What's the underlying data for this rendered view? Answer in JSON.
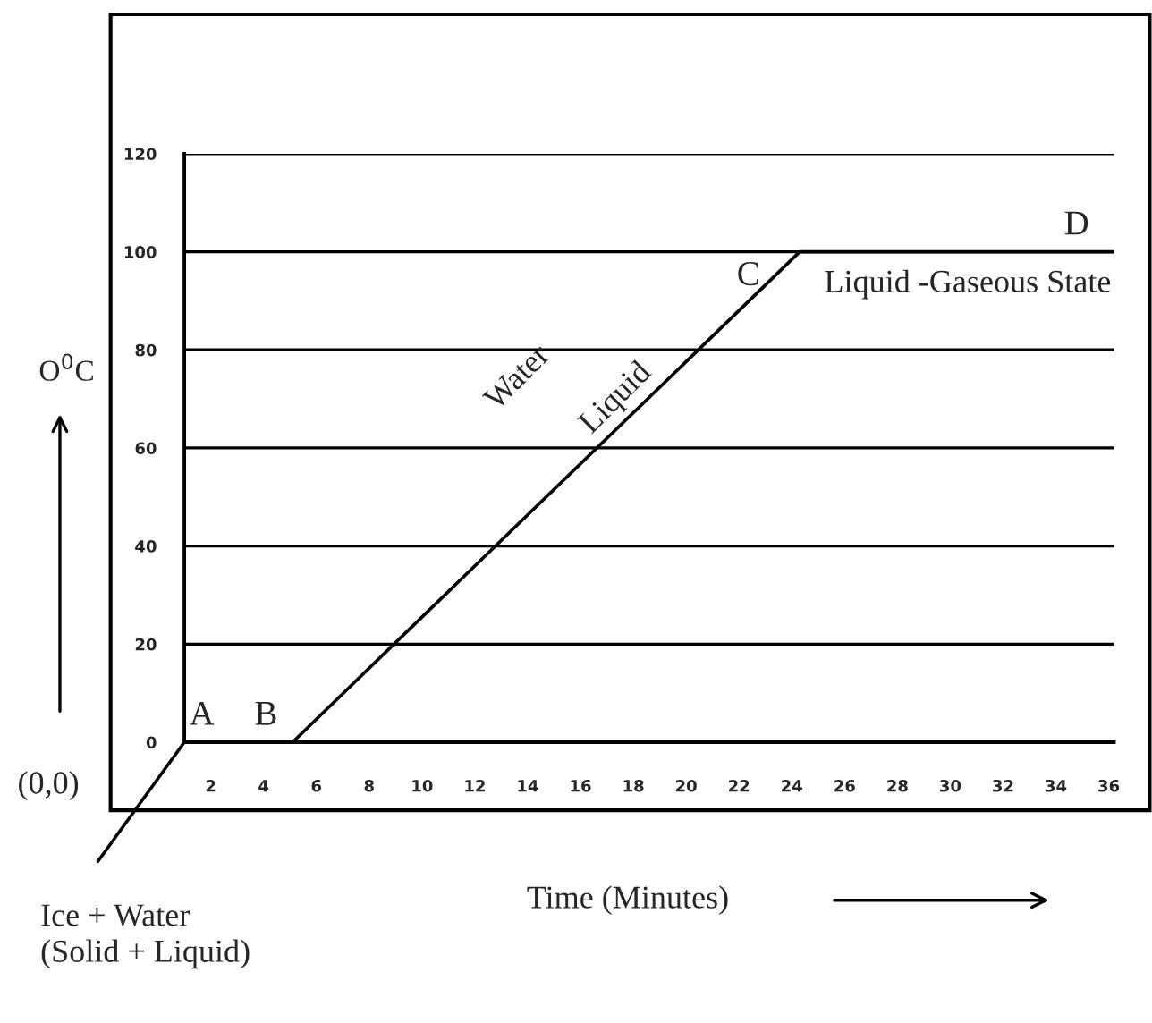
{
  "chart_data": {
    "type": "line",
    "xlabel": "Time (Minutes)",
    "ylabel": "O$^{0}$C",
    "x": [
      1,
      5.1,
      24.3,
      36.2
    ],
    "series": [
      {
        "color": "#000000",
        "values": [
          0,
          0,
          100,
          100
        ]
      }
    ],
    "xlim": [
      1,
      36.2
    ],
    "ylim": [
      0,
      120
    ],
    "xticks": [
      2,
      4,
      6,
      8,
      10,
      12,
      14,
      16,
      18,
      20,
      22,
      24,
      26,
      28,
      30,
      32,
      34,
      36
    ],
    "yticks": [
      0,
      20,
      40,
      60,
      80,
      100,
      120
    ],
    "grid": "y",
    "marker": "none",
    "line_style": "solid",
    "annotations": [
      {
        "text": "A",
        "x": 1,
        "y": 0
      },
      {
        "text": "B",
        "x": 5.1,
        "y": 0
      },
      {
        "text": "C",
        "x": 24.3,
        "y": 100
      },
      {
        "text": "D",
        "x": 36.2,
        "y": 100
      },
      "Water",
      "Liquid",
      "Liquid -Gaseous State",
      "(0,0)",
      "Ice + Water\n(Solid + Liquid)"
    ]
  }
}
